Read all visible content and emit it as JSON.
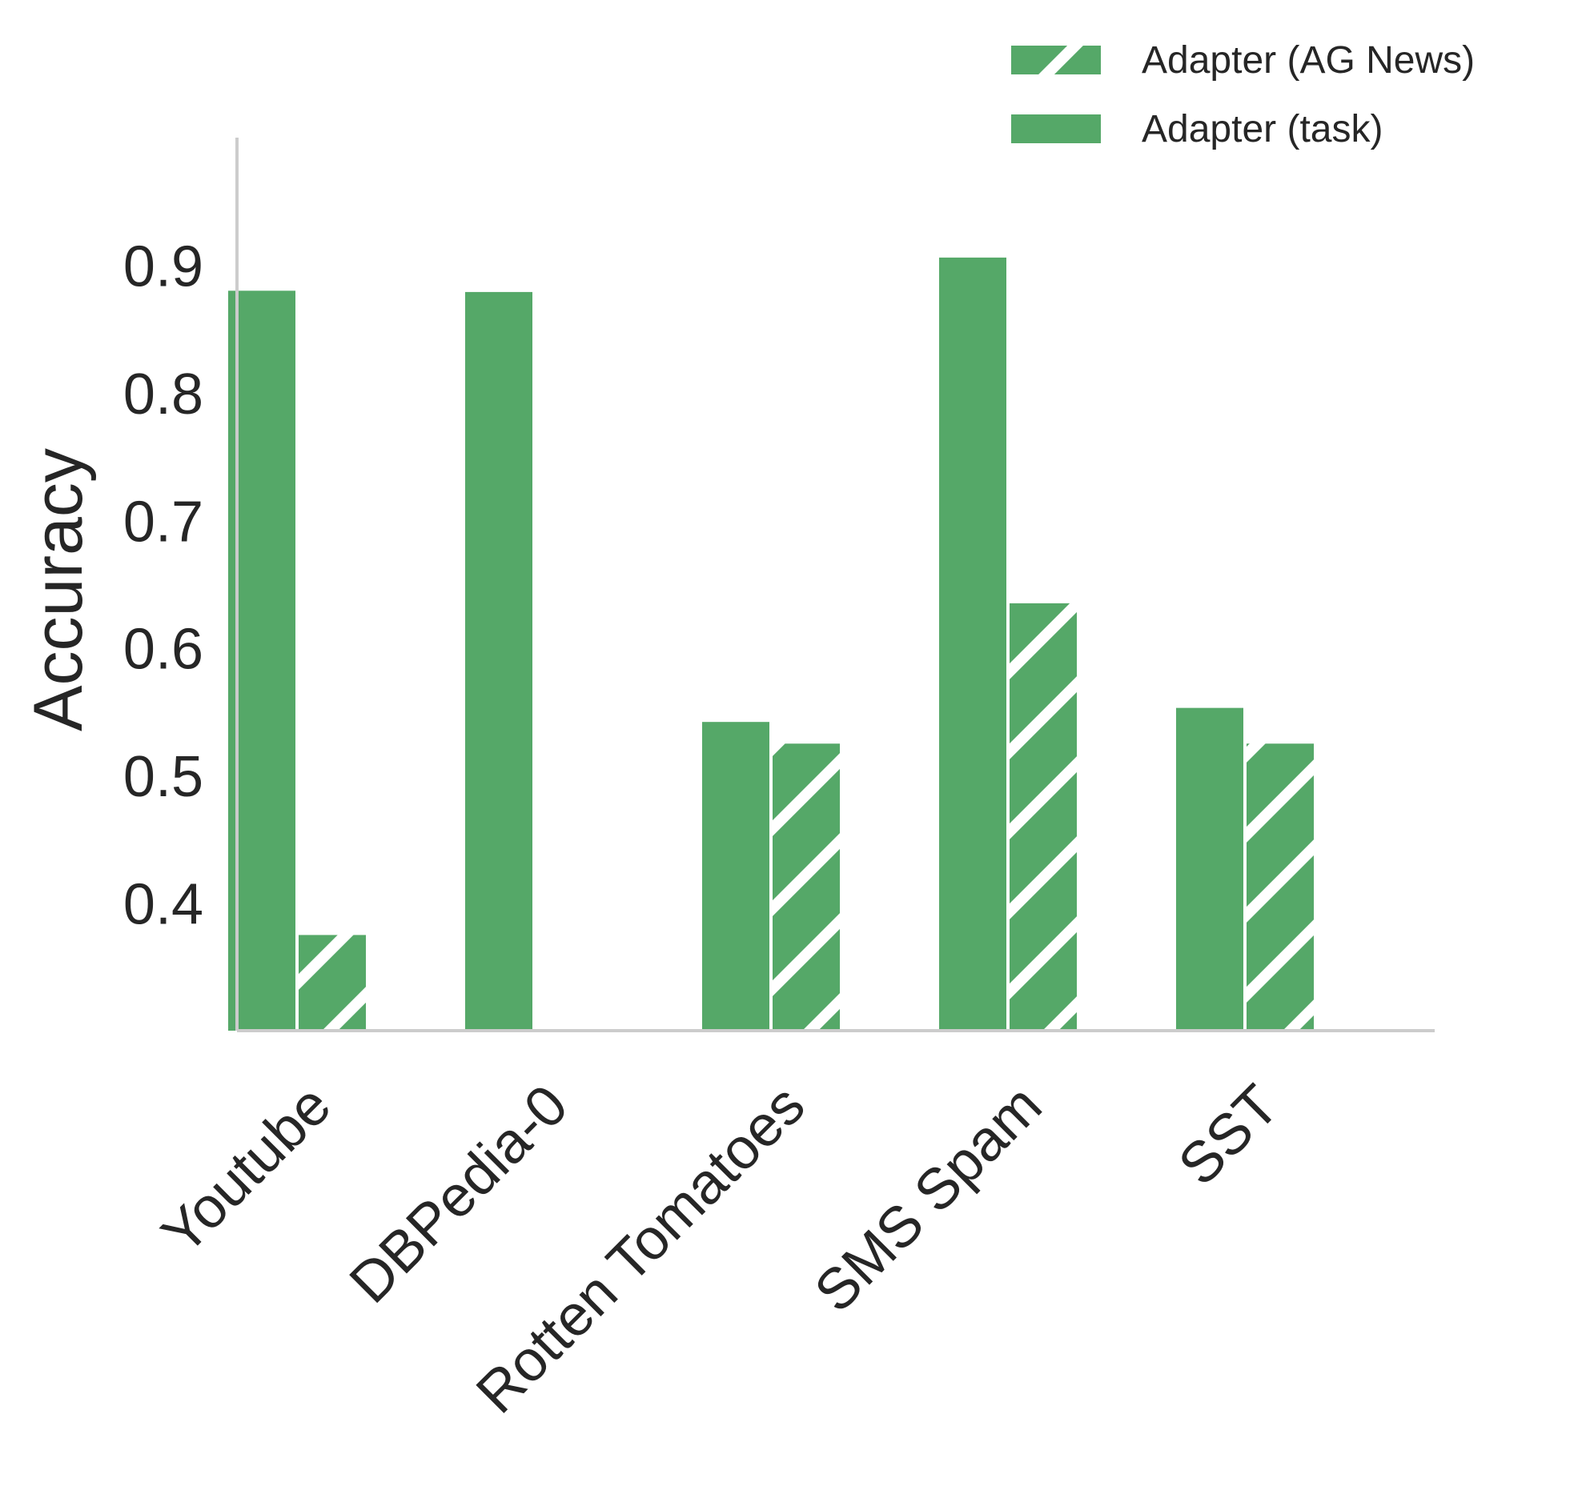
{
  "chart_data": {
    "type": "bar",
    "categories": [
      "Youtube",
      "DBPedia-0",
      "Rotten Tomatoes",
      "SMS Spam",
      "SST"
    ],
    "series": [
      {
        "name": "Adapter (task)",
        "values": [
          0.88,
          0.879,
          0.542,
          0.906,
          0.553
        ],
        "pattern": "solid"
      },
      {
        "name": "Adapter (AG News)",
        "values": [
          0.375,
          null,
          0.525,
          0.635,
          0.525
        ],
        "pattern": "hatch"
      }
    ],
    "xlabel": "",
    "ylabel": "Accuracy",
    "ylim": [
      0.3,
      1.0
    ],
    "yticks": [
      "0.4",
      "0.5",
      "0.6",
      "0.7",
      "0.8",
      "0.9"
    ],
    "grid": false,
    "legend_position": "top-right",
    "colors": {
      "bar": "#55a868",
      "axis": "#cccccc",
      "text": "#262626",
      "hatch": "#ffffff"
    }
  }
}
